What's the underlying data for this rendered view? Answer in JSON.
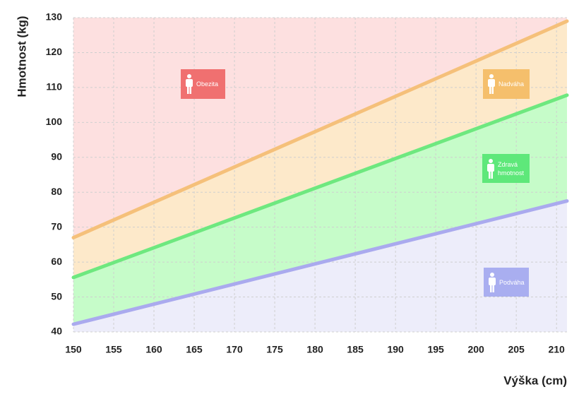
{
  "chart_data": {
    "type": "zones",
    "x_label": "Výška (cm)",
    "y_label": "Hmotnost (kg)",
    "xlim": [
      150,
      211.3
    ],
    "ylim": [
      40,
      130
    ],
    "xticks": [
      150,
      155,
      160,
      165,
      170,
      175,
      180,
      185,
      190,
      195,
      200,
      205,
      210
    ],
    "yticks": [
      40,
      50,
      60,
      70,
      80,
      90,
      100,
      110,
      120,
      130
    ],
    "grid": true,
    "x": [
      150,
      211.3
    ],
    "series": [
      {
        "color": "#aaaaee",
        "values": [
          42.2,
          77.5
        ]
      },
      {
        "color": "#6ee87f",
        "values": [
          55.6,
          107.8
        ]
      },
      {
        "color": "#f5c07a",
        "values": [
          67,
          129
        ]
      }
    ],
    "zones": [
      {
        "name": "Podváha",
        "color": "#ededfa",
        "box_color": "#a9aef0"
      },
      {
        "name": "Zdravá hmotnost",
        "color": "#c6fcc9",
        "box_color": "#5ee87a"
      },
      {
        "name": "Nadváha",
        "color": "#fde9ca",
        "box_color": "#f5bf6c"
      },
      {
        "name": "Obezita",
        "color": "#fde0e0",
        "box_color": "#f07070"
      }
    ]
  }
}
